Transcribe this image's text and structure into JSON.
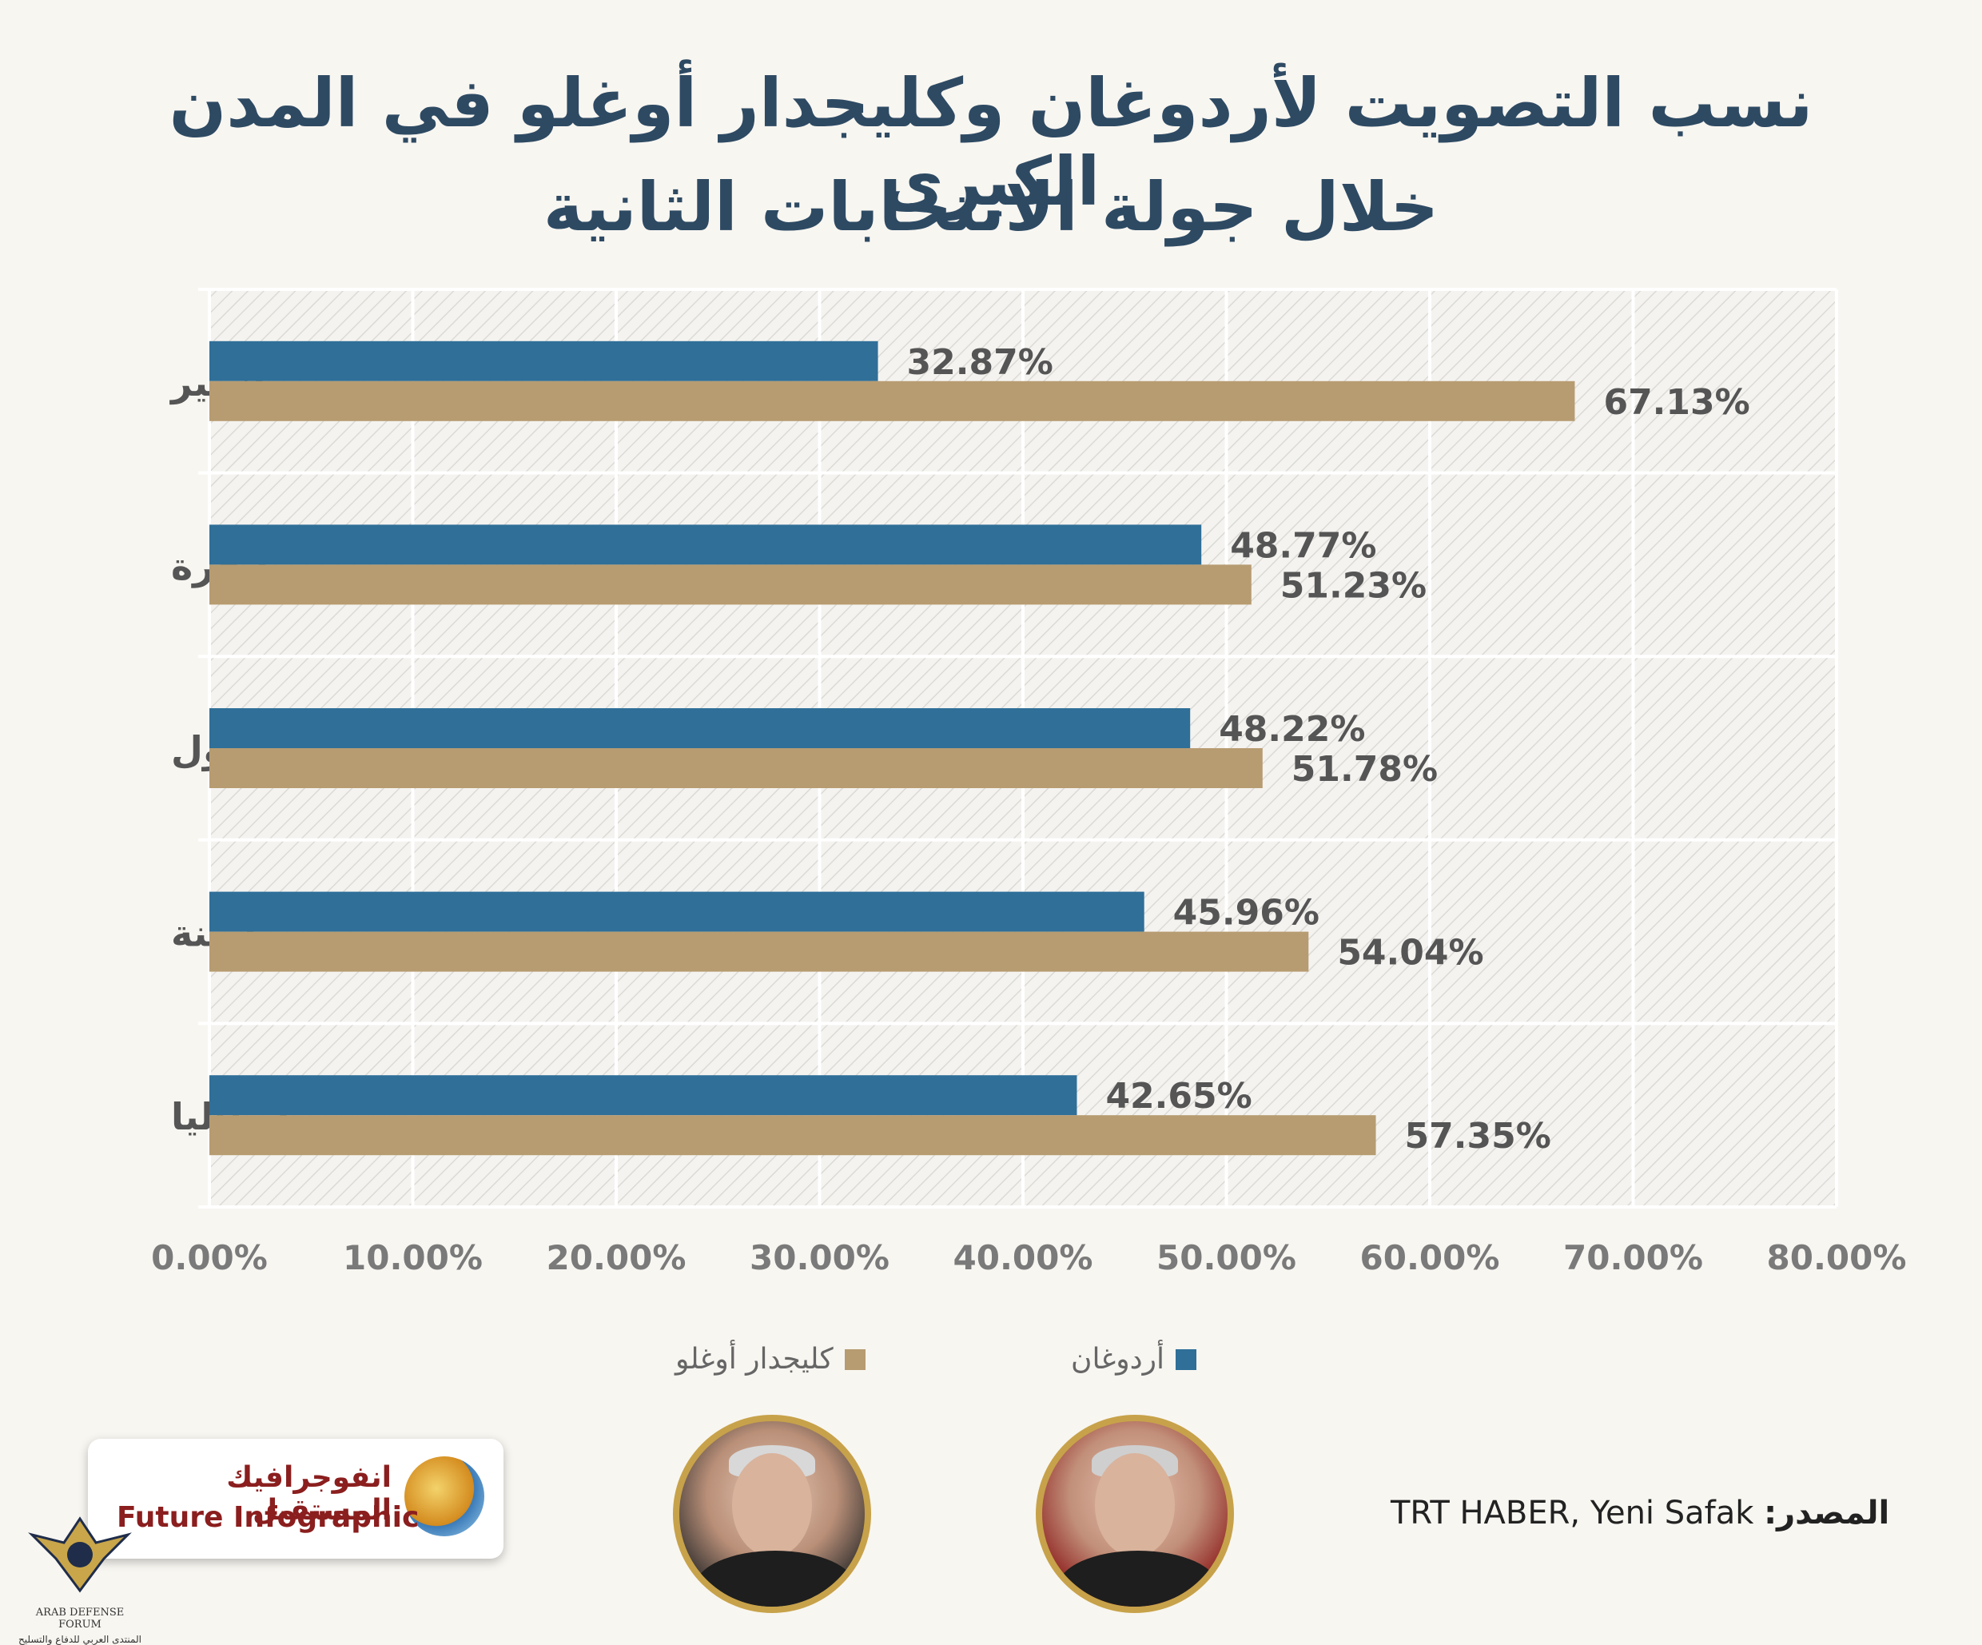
{
  "header": {
    "title_line1": "نسب التصويت لأردوغان وكليجدار أوغلو في المدن الكبرى",
    "title_line2": "خلال جولة الانتخابات الثانية"
  },
  "chart_data": {
    "type": "bar",
    "orientation": "horizontal",
    "title": "نسب التصويت لأردوغان وكليجدار أوغلو في المدن الكبرى خلال جولة الانتخابات الثانية",
    "categories": [
      "إزمير",
      "أنقرة",
      "اسطنبول",
      "أضنة",
      "انطاليا"
    ],
    "series": [
      {
        "name": "أردوغان",
        "color": "#2f6f98",
        "values": [
          32.87,
          48.77,
          48.22,
          45.96,
          42.65
        ]
      },
      {
        "name": "كليجدار أوغلو",
        "color": "#b79c71",
        "values": [
          67.13,
          51.23,
          51.78,
          54.04,
          57.35
        ]
      }
    ],
    "value_labels": [
      [
        "32.87%",
        "48.77%",
        "48.22%",
        "45.96%",
        "42.65%"
      ],
      [
        "67.13%",
        "51.23%",
        "51.78%",
        "54.04%",
        "57.35%"
      ]
    ],
    "xlim": [
      0,
      80
    ],
    "xticks": [
      "0.00%",
      "10.00%",
      "20.00%",
      "30.00%",
      "40.00%",
      "50.00%",
      "60.00%",
      "70.00%",
      "80.00%"
    ],
    "grid": true,
    "legend_position": "bottom"
  },
  "legend": {
    "erdogan_label": "أردوغان",
    "kilicdaroglu_label": "كليجدار أوغلو"
  },
  "source": {
    "label": "المصدر:",
    "value": "TRT HABER, Yeni Safak"
  },
  "brand": {
    "name_ar": "انفوجرافيك المستقبل",
    "name_en": "Future Infographic"
  },
  "watermark": {
    "line1": "ARAB DEFENSE FORUM",
    "line2": "المنتدى العربي للدفاع والتسليح"
  }
}
